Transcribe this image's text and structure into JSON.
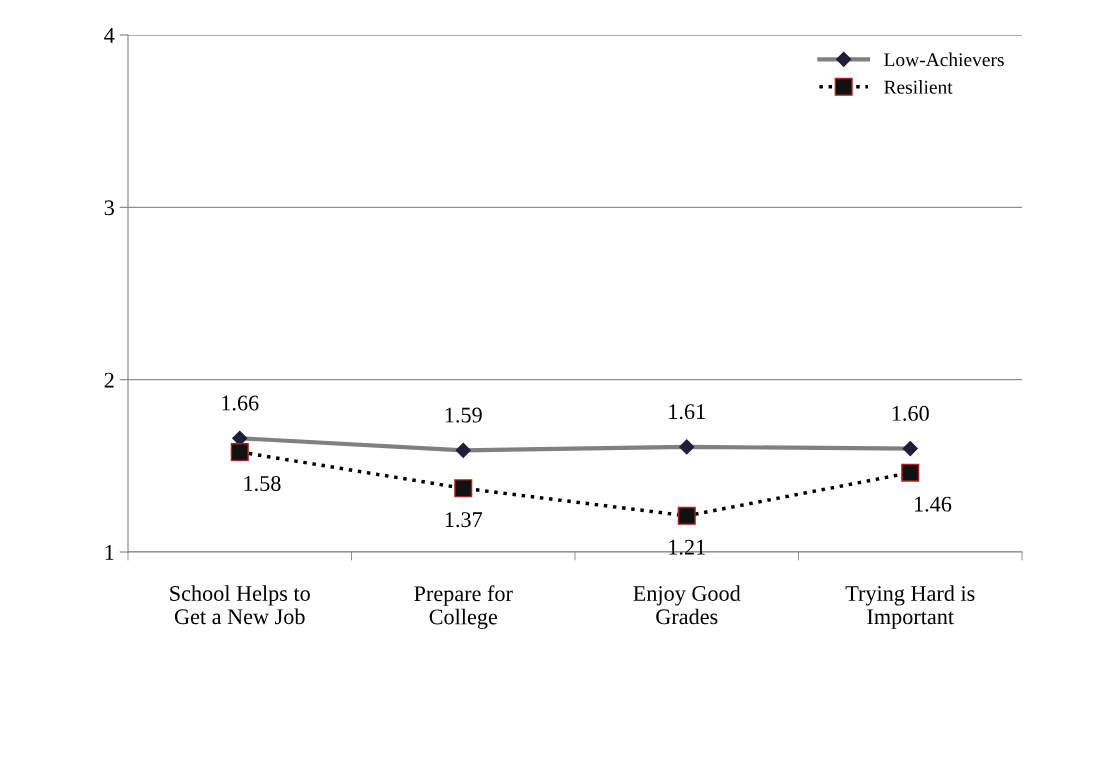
{
  "chart_data": {
    "type": "line",
    "categories": [
      "School Helps to\nGet a New Job",
      "Prepare for\nCollege",
      "Enjoy Good\nGrades",
      "Trying Hard is\nImportant"
    ],
    "series": [
      {
        "name": "Low-Achievers",
        "color": "#808080",
        "marker": "diamond",
        "line_style": "solid",
        "values": [
          1.66,
          1.59,
          1.61,
          1.6
        ],
        "value_labels": [
          "1.66",
          "1.59",
          "1.61",
          "1.60"
        ]
      },
      {
        "name": "Resilient",
        "color": "#000000",
        "marker": "square",
        "line_style": "dotted",
        "values": [
          1.58,
          1.37,
          1.21,
          1.46
        ],
        "value_labels": [
          "1.58",
          "1.37",
          "1.21",
          "1.46"
        ]
      }
    ],
    "ylim": [
      1,
      4
    ],
    "yticks": [
      1,
      2,
      3,
      4
    ],
    "grid": "y",
    "legend": "top right"
  }
}
